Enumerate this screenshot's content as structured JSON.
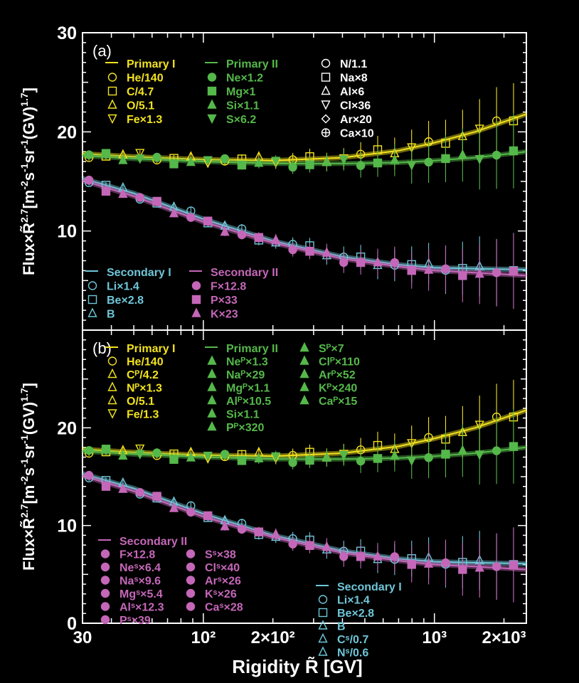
{
  "colors": {
    "primary_I": "#f2e21f",
    "primary_II": "#55b84a",
    "secondary_I": "#6fc6d8",
    "secondary_II": "#c567b8",
    "other": "#ffffff",
    "frame": "#ffffff"
  },
  "chart_data": [
    {
      "type": "line",
      "panel_label": "(a)",
      "xscale": "log",
      "xlim": [
        30,
        2500
      ],
      "ylim": [
        0,
        30
      ],
      "ylabel": "Flux×R̃2.7[m-2s-1sr-1(GV)1.7]",
      "yticks": [
        10,
        20,
        30
      ],
      "ytick_labels": [
        "10",
        "20",
        "30"
      ],
      "legend": [
        {
          "group": "Primary I",
          "color": "primary_I",
          "entries": [
            {
              "label": "He/140",
              "marker": "circle-open"
            },
            {
              "label": "C/4.7",
              "marker": "square-open"
            },
            {
              "label": "O/5.1",
              "marker": "triangle-open"
            },
            {
              "label": "Fe×1.3",
              "marker": "triangle-down-open"
            }
          ]
        },
        {
          "group": "Primary II",
          "color": "primary_II",
          "entries": [
            {
              "label": "Ne×1.2",
              "marker": "circle"
            },
            {
              "label": "Mg×1",
              "marker": "square"
            },
            {
              "label": "Si×1.1",
              "marker": "triangle"
            },
            {
              "label": "S×6.2",
              "marker": "triangle-down"
            }
          ]
        },
        {
          "group": "",
          "color": "other",
          "entries": [
            {
              "label": "N/1.1",
              "marker": "circle-open"
            },
            {
              "label": "Na×8",
              "marker": "square-open"
            },
            {
              "label": "Al×6",
              "marker": "triangle-open"
            },
            {
              "label": "Cl×36",
              "marker": "triangle-down-open"
            },
            {
              "label": "Ar×20",
              "marker": "diamond-open"
            },
            {
              "label": "Ca×10",
              "marker": "cross-open"
            }
          ]
        },
        {
          "group": "Secondary I",
          "color": "secondary_I",
          "entries": [
            {
              "label": "Li×1.4",
              "marker": "circle-open"
            },
            {
              "label": "Be×2.8",
              "marker": "square-open"
            },
            {
              "label": "B",
              "marker": "triangle-open"
            }
          ]
        },
        {
          "group": "Secondary II",
          "color": "secondary_II",
          "entries": [
            {
              "label": "F×12.8",
              "marker": "circle"
            },
            {
              "label": "P×33",
              "marker": "square"
            },
            {
              "label": "K×23",
              "marker": "triangle"
            }
          ]
        }
      ],
      "series": [
        {
          "name": "Primary I",
          "color": "primary_I",
          "x": [
            30,
            50,
            100,
            200,
            400,
            700,
            1000,
            1500,
            2500
          ],
          "y": [
            17.8,
            17.5,
            17.2,
            17.1,
            17.4,
            18.1,
            18.9,
            20.0,
            21.8
          ]
        },
        {
          "name": "Primary II",
          "color": "primary_II",
          "x": [
            30,
            50,
            100,
            200,
            400,
            700,
            1000,
            1500,
            2500
          ],
          "y": [
            17.6,
            17.3,
            17.0,
            16.8,
            16.8,
            16.9,
            17.1,
            17.4,
            18.0
          ]
        },
        {
          "name": "Secondary I",
          "color": "secondary_I",
          "x": [
            30,
            50,
            100,
            200,
            400,
            700,
            1000,
            1500,
            2500
          ],
          "y": [
            15.3,
            13.8,
            11.2,
            9.0,
            7.4,
            6.6,
            6.3,
            6.2,
            6.1
          ]
        },
        {
          "name": "Secondary II",
          "color": "secondary_II",
          "x": [
            30,
            50,
            100,
            200,
            400,
            700,
            1000,
            1500,
            2500
          ],
          "y": [
            15.1,
            13.5,
            10.9,
            8.8,
            7.2,
            6.4,
            6.0,
            5.8,
            5.5
          ]
        }
      ]
    },
    {
      "type": "line",
      "panel_label": "(b)",
      "xscale": "log",
      "xlim": [
        30,
        2500
      ],
      "ylim": [
        0,
        30
      ],
      "ylabel": "Flux×R̃2.7[m-2s-1sr-1(GV)1.7]",
      "yticks": [
        0,
        10,
        20
      ],
      "ytick_labels": [
        "0",
        "10",
        "20"
      ],
      "xlabel": "Rigidity R̃ [GV]",
      "xticks": [
        30,
        100,
        200,
        1000,
        2000
      ],
      "xtick_labels": [
        "30",
        "10²",
        "2×10²",
        "10³",
        "2×10³"
      ],
      "legend": [
        {
          "group": "Primary I",
          "color": "primary_I",
          "entries": [
            {
              "label": "He/140",
              "marker": "circle-open"
            },
            {
              "label": "Cᴾ/4.2",
              "marker": "triangle-open"
            },
            {
              "label": "Nᴾ×1.3",
              "marker": "triangle-open"
            },
            {
              "label": "O/5.1",
              "marker": "triangle-open"
            },
            {
              "label": "Fe/1.3",
              "marker": "triangle-down-open"
            }
          ]
        },
        {
          "group": "Primary II",
          "color": "primary_II",
          "entries": [
            {
              "label": "Neᴾ×1.3",
              "marker": "triangle"
            },
            {
              "label": "Naᴾ×29",
              "marker": "triangle"
            },
            {
              "label": "Mgᴾ×1.1",
              "marker": "triangle"
            },
            {
              "label": "Alᴾ×10.5",
              "marker": "triangle"
            },
            {
              "label": "Si×1.1",
              "marker": "triangle"
            },
            {
              "label": "Pᴾ×320",
              "marker": "triangle"
            },
            {
              "label": "Sᴾ×7",
              "marker": "triangle"
            },
            {
              "label": "Clᴾ×110",
              "marker": "triangle"
            },
            {
              "label": "Arᴾ×52",
              "marker": "triangle"
            },
            {
              "label": "Kᴾ×240",
              "marker": "triangle"
            },
            {
              "label": "Caᴾ×15",
              "marker": "triangle"
            }
          ]
        },
        {
          "group": "Secondary II",
          "color": "secondary_II",
          "entries": [
            {
              "label": "F×12.8",
              "marker": "circle"
            },
            {
              "label": "Neˢ×6.4",
              "marker": "circle"
            },
            {
              "label": "Naˢ×9.6",
              "marker": "circle"
            },
            {
              "label": "Mgˢ×5.4",
              "marker": "circle"
            },
            {
              "label": "Alˢ×12.3",
              "marker": "circle"
            },
            {
              "label": "Pˢ×39",
              "marker": "circle"
            },
            {
              "label": "Sˢ×38",
              "marker": "circle"
            },
            {
              "label": "Clˢ×40",
              "marker": "circle"
            },
            {
              "label": "Arˢ×26",
              "marker": "circle"
            },
            {
              "label": "Kˢ×26",
              "marker": "circle"
            },
            {
              "label": "Caˢ×28",
              "marker": "circle"
            }
          ]
        },
        {
          "group": "Secondary I",
          "color": "secondary_I",
          "entries": [
            {
              "label": "Li×1.4",
              "marker": "circle-open"
            },
            {
              "label": "Be×2.8",
              "marker": "square-open"
            },
            {
              "label": "B",
              "marker": "triangle-open"
            },
            {
              "label": "Cˢ/0.7",
              "marker": "triangle-open"
            },
            {
              "label": "Nˢ/0.6",
              "marker": "triangle-open"
            }
          ]
        }
      ],
      "series": [
        {
          "name": "Primary I",
          "color": "primary_I",
          "x": [
            30,
            50,
            100,
            200,
            400,
            700,
            1000,
            1500,
            2500
          ],
          "y": [
            17.8,
            17.5,
            17.2,
            17.1,
            17.4,
            18.1,
            18.9,
            20.0,
            21.8
          ]
        },
        {
          "name": "Primary II",
          "color": "primary_II",
          "x": [
            30,
            50,
            100,
            200,
            400,
            700,
            1000,
            1500,
            2500
          ],
          "y": [
            17.6,
            17.3,
            17.0,
            16.8,
            16.8,
            16.9,
            17.1,
            17.4,
            18.0
          ]
        },
        {
          "name": "Secondary I",
          "color": "secondary_I",
          "x": [
            30,
            50,
            100,
            200,
            400,
            700,
            1000,
            1500,
            2500
          ],
          "y": [
            15.3,
            13.8,
            11.2,
            9.0,
            7.4,
            6.6,
            6.3,
            6.2,
            6.1
          ]
        },
        {
          "name": "Secondary II",
          "color": "secondary_II",
          "x": [
            30,
            50,
            100,
            200,
            400,
            700,
            1000,
            1500,
            2500
          ],
          "y": [
            15.1,
            13.5,
            10.9,
            8.8,
            7.2,
            6.4,
            6.0,
            5.8,
            5.5
          ]
        }
      ]
    }
  ]
}
